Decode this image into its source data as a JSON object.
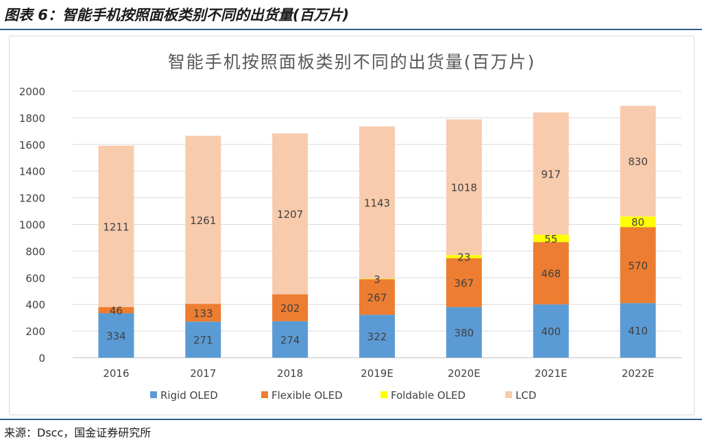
{
  "header": {
    "figure_title": "图表 6：智能手机按照面板类别不同的出货量(百万片)"
  },
  "source": {
    "text": "来源：Dscc，国金证券研究所"
  },
  "chart_data": {
    "type": "bar",
    "stacked": true,
    "title": "智能手机按照面板类别不同的出货量(百万片)",
    "xlabel": "",
    "ylabel": "",
    "categories": [
      "2016",
      "2017",
      "2018",
      "2019E",
      "2020E",
      "2021E",
      "2022E"
    ],
    "ylim": [
      0,
      2000
    ],
    "yticks": [
      0,
      200,
      400,
      600,
      800,
      1000,
      1200,
      1400,
      1600,
      1800,
      2000
    ],
    "grid": true,
    "legend_position": "bottom",
    "series": [
      {
        "name": "Rigid OLED",
        "color": "#5b9bd5",
        "values": [
          334,
          271,
          274,
          322,
          380,
          400,
          410
        ]
      },
      {
        "name": "Flexible OLED",
        "color": "#ed7d31",
        "values": [
          46,
          133,
          202,
          267,
          367,
          468,
          570
        ]
      },
      {
        "name": "Foldable OLED",
        "color": "#ffff00",
        "values": [
          null,
          null,
          null,
          3,
          23,
          55,
          80
        ]
      },
      {
        "name": "LCD",
        "color": "#f8cbad",
        "values": [
          1211,
          1261,
          1207,
          1143,
          1018,
          917,
          830
        ]
      }
    ]
  }
}
